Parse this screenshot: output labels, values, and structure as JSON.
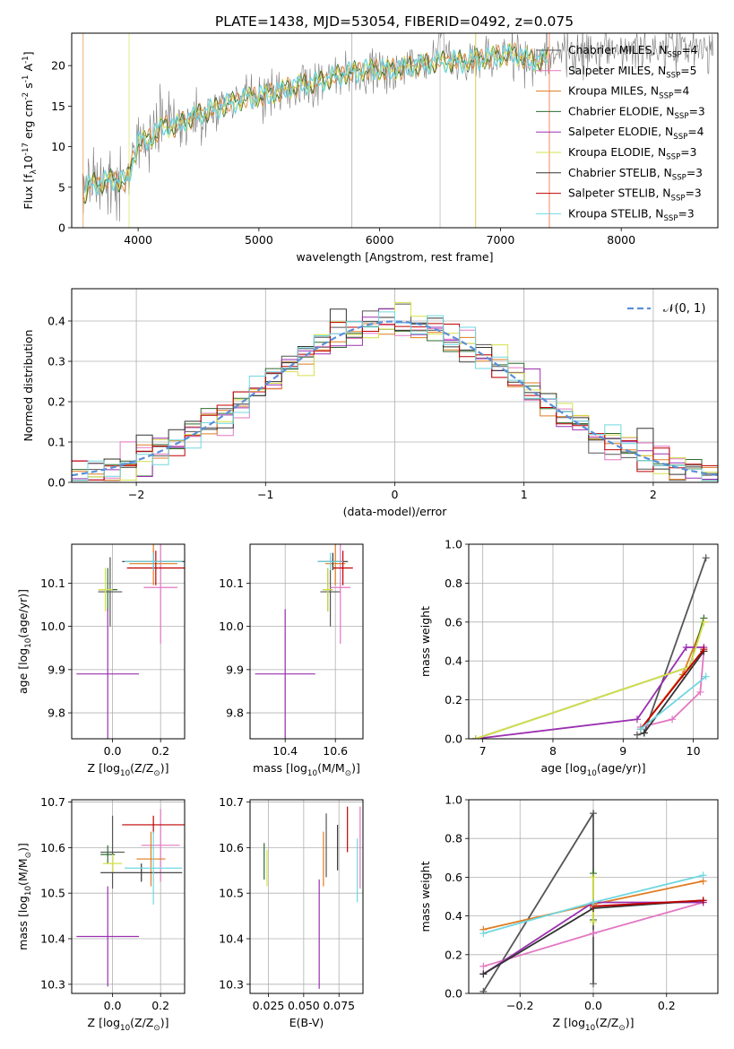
{
  "figure": {
    "title": "PLATE=1438, MJD=53054, FIBERID=0492, z=0.075"
  },
  "models": [
    {
      "label": "Chabrier MILES, N$_{SSP}$=4",
      "color": "#555555"
    },
    {
      "label": "Salpeter MILES, N$_{SSP}$=5",
      "color": "#e377c2"
    },
    {
      "label": "Kroupa MILES, N$_{SSP}$=4",
      "color": "#e07b20"
    },
    {
      "label": "Chabrier ELODIE, N$_{SSP}$=3",
      "color": "#2e6b2e"
    },
    {
      "label": "Salpeter ELODIE, N$_{SSP}$=4",
      "color": "#9b30b0"
    },
    {
      "label": "Kroupa ELODIE, N$_{SSP}$=3",
      "color": "#d6e04a"
    },
    {
      "label": "Chabrier STELIB, N$_{SSP}$=3",
      "color": "#333333"
    },
    {
      "label": "Salpeter STELIB, N$_{SSP}$=3",
      "color": "#c00000"
    },
    {
      "label": "Kroupa STELIB, N$_{SSP}$=3",
      "color": "#6fd7e0"
    }
  ],
  "chart_data": [
    {
      "id": "spectrum",
      "type": "line",
      "xlabel": "wavelength [Angstrom, rest frame]",
      "ylabel": "Flux [f$_\\lambda$10$^{-17}$ erg cm$^{-2}$ s$^{-1}$ A$^{-1}$]",
      "xlim": [
        3450,
        8800
      ],
      "ylim": [
        0,
        24
      ],
      "xticks": [
        4000,
        5000,
        6000,
        7000,
        8000
      ],
      "yticks": [
        0,
        5,
        10,
        15,
        20
      ],
      "legend": "right",
      "continuum": {
        "x": [
          3540,
          3600,
          3700,
          3800,
          3900,
          4000,
          4100,
          4200,
          4300,
          4500,
          4700,
          4900,
          5100,
          5300,
          5500,
          5700,
          5900,
          6100,
          6300,
          6500,
          6700,
          6900,
          7100,
          7300,
          7500,
          7800,
          8100,
          8400,
          8760
        ],
        "y": [
          3.5,
          5.5,
          5.5,
          6,
          5.5,
          10.5,
          11,
          12.5,
          12.5,
          14,
          15,
          16,
          16.5,
          17.5,
          18,
          19,
          19.5,
          19.5,
          20,
          20.5,
          20.5,
          21,
          21.5,
          20.5,
          21.5,
          22,
          22,
          22.5,
          22
        ]
      }
    },
    {
      "id": "residuals",
      "type": "step",
      "xlabel": "(data-model)/error",
      "ylabel": "Normed distribution",
      "xlim": [
        -2.5,
        2.5
      ],
      "ylim": [
        0,
        0.48
      ],
      "xticks": [
        -2,
        -1,
        0,
        1,
        2
      ],
      "yticks": [
        0,
        0.1,
        0.2,
        0.3,
        0.4
      ],
      "legend_label": "$\\mathcal{N}(0,1)$",
      "bin_width": 0.125
    },
    {
      "id": "age_vs_Z",
      "type": "errorbar",
      "xlabel": "Z [log$_{10}$(Z/Z$_\\odot$)]",
      "ylabel": "age  [log$_{10}$(age/yr)]",
      "xlim": [
        -0.17,
        0.3
      ],
      "ylim": [
        9.74,
        10.19
      ],
      "xticks": [
        0.0,
        0.2
      ],
      "yticks": [
        9.8,
        9.9,
        10.0,
        10.1
      ],
      "points": [
        {
          "x": -0.01,
          "y": 10.08,
          "xerr": 0.05,
          "yerr": 0.08,
          "model": 0
        },
        {
          "x": 0.2,
          "y": 10.09,
          "xerr": 0.07,
          "yerr": 0.13,
          "model": 1
        },
        {
          "x": 0.17,
          "y": 10.145,
          "xerr": 0.1,
          "yerr": 0.05,
          "model": 2
        },
        {
          "x": -0.02,
          "y": 10.085,
          "xerr": 0.04,
          "yerr": 0.05,
          "model": 3
        },
        {
          "x": -0.02,
          "y": 9.89,
          "xerr": 0.13,
          "yerr": 0.15,
          "model": 4
        },
        {
          "x": -0.03,
          "y": 10.085,
          "xerr": 0.03,
          "yerr": 0.05,
          "model": 5
        },
        {
          "x": 0.17,
          "y": 10.15,
          "xerr": 0.13,
          "yerr": 0.02,
          "model": 6
        },
        {
          "x": 0.18,
          "y": 10.135,
          "xerr": 0.12,
          "yerr": 0.04,
          "model": 7
        },
        {
          "x": 0.17,
          "y": 10.15,
          "xerr": 0.12,
          "yerr": 0.02,
          "model": 8
        }
      ]
    },
    {
      "id": "age_vs_mass",
      "type": "errorbar",
      "xlabel": "mass [log$_{10}$(M/M$_\\odot$)]",
      "ylabel": "",
      "xlim": [
        10.26,
        10.71
      ],
      "ylim": [
        9.74,
        10.19
      ],
      "xticks": [
        10.4,
        10.6
      ],
      "yticks": [
        9.8,
        9.9,
        10.0,
        10.1
      ],
      "points": [
        {
          "x": 10.58,
          "y": 10.08,
          "xerr": 0.04,
          "yerr": 0.08,
          "model": 0
        },
        {
          "x": 10.62,
          "y": 10.09,
          "xerr": 0.04,
          "yerr": 0.13,
          "model": 1
        },
        {
          "x": 10.6,
          "y": 10.145,
          "xerr": 0.04,
          "yerr": 0.05,
          "model": 2
        },
        {
          "x": 10.57,
          "y": 10.085,
          "xerr": 0.02,
          "yerr": 0.05,
          "model": 3
        },
        {
          "x": 10.4,
          "y": 9.89,
          "xerr": 0.12,
          "yerr": 0.15,
          "model": 4
        },
        {
          "x": 10.57,
          "y": 10.085,
          "xerr": 0.02,
          "yerr": 0.05,
          "model": 5
        },
        {
          "x": 10.59,
          "y": 10.15,
          "xerr": 0.06,
          "yerr": 0.02,
          "model": 6
        },
        {
          "x": 10.63,
          "y": 10.135,
          "xerr": 0.04,
          "yerr": 0.04,
          "model": 7
        },
        {
          "x": 10.58,
          "y": 10.15,
          "xerr": 0.05,
          "yerr": 0.02,
          "model": 8
        }
      ]
    },
    {
      "id": "weight_vs_age",
      "type": "line",
      "xlabel": "age  [log$_{10}$(age/yr)]",
      "ylabel": "mass weight",
      "xlim": [
        6.8,
        10.35
      ],
      "ylim": [
        0,
        1.0
      ],
      "xticks": [
        7,
        8,
        9,
        10
      ],
      "yticks": [
        0,
        0.2,
        0.4,
        0.6,
        0.8,
        1.0
      ],
      "series": [
        {
          "model": 0,
          "x": [
            9.2,
            9.3,
            10.18
          ],
          "y": [
            0.02,
            0.03,
            0.93
          ]
        },
        {
          "model": 1,
          "x": [
            9.25,
            9.7,
            10.1,
            10.15
          ],
          "y": [
            0.06,
            0.1,
            0.24,
            0.45
          ]
        },
        {
          "model": 2,
          "x": [
            9.25,
            9.85,
            10.15
          ],
          "y": [
            0.05,
            0.33,
            0.6
          ]
        },
        {
          "model": 3,
          "x": [
            6.9,
            9.95,
            10.15
          ],
          "y": [
            0.0,
            0.37,
            0.62
          ]
        },
        {
          "model": 4,
          "x": [
            6.9,
            9.2,
            9.9,
            10.15
          ],
          "y": [
            0.0,
            0.1,
            0.47,
            0.47
          ]
        },
        {
          "model": 5,
          "x": [
            6.9,
            9.95,
            10.15
          ],
          "y": [
            0.0,
            0.37,
            0.6
          ]
        },
        {
          "model": 6,
          "x": [
            9.3,
            10.15
          ],
          "y": [
            0.03,
            0.45
          ]
        },
        {
          "model": 7,
          "x": [
            9.25,
            10.15
          ],
          "y": [
            0.05,
            0.46
          ]
        },
        {
          "model": 8,
          "x": [
            9.25,
            10.18
          ],
          "y": [
            0.05,
            0.32
          ]
        }
      ]
    },
    {
      "id": "mass_vs_Z",
      "type": "errorbar",
      "xlabel": "Z [log$_{10}$(Z/Z$_\\odot$)]",
      "ylabel": "mass [log$_{10}$(M/M$_\\odot$)]",
      "xlim": [
        -0.17,
        0.3
      ],
      "ylim": [
        10.28,
        10.705
      ],
      "xticks": [
        0.0,
        0.2
      ],
      "yticks": [
        10.3,
        10.4,
        10.5,
        10.6,
        10.7
      ],
      "points": [
        {
          "x": 0.0,
          "y": 10.59,
          "xerr": 0.05,
          "yerr": 0.08,
          "model": 0
        },
        {
          "x": 0.2,
          "y": 10.605,
          "xerr": 0.08,
          "yerr": 0.08,
          "model": 1
        },
        {
          "x": 0.16,
          "y": 10.575,
          "xerr": 0.06,
          "yerr": 0.06,
          "model": 2
        },
        {
          "x": -0.02,
          "y": 10.585,
          "xerr": 0.03,
          "yerr": 0.02,
          "model": 3
        },
        {
          "x": -0.02,
          "y": 10.405,
          "xerr": 0.13,
          "yerr": 0.11,
          "model": 4
        },
        {
          "x": 0.0,
          "y": 10.565,
          "xerr": 0.04,
          "yerr": 0.02,
          "model": 5
        },
        {
          "x": 0.12,
          "y": 10.545,
          "xerr": 0.17,
          "yerr": 0.02,
          "model": 6
        },
        {
          "x": 0.17,
          "y": 10.65,
          "xerr": 0.13,
          "yerr": 0.02,
          "model": 7
        },
        {
          "x": 0.17,
          "y": 10.555,
          "xerr": 0.12,
          "yerr": 0.08,
          "model": 8
        }
      ]
    },
    {
      "id": "mass_vs_EBV",
      "type": "errorbar",
      "xlabel": "E(B-V)",
      "ylabel": "",
      "xlim": [
        0.012,
        0.092
      ],
      "ylim": [
        10.28,
        10.705
      ],
      "xticks": [
        0.025,
        0.05,
        0.075
      ],
      "yticks": [
        10.3,
        10.4,
        10.5,
        10.6,
        10.7
      ],
      "points": [
        {
          "x": 0.066,
          "y": 10.605,
          "yerr": 0.07,
          "model": 0
        },
        {
          "x": 0.09,
          "y": 10.6,
          "yerr": 0.09,
          "model": 1
        },
        {
          "x": 0.064,
          "y": 10.575,
          "yerr": 0.06,
          "model": 2
        },
        {
          "x": 0.022,
          "y": 10.57,
          "yerr": 0.04,
          "model": 3
        },
        {
          "x": 0.061,
          "y": 10.41,
          "yerr": 0.12,
          "model": 4
        },
        {
          "x": 0.024,
          "y": 10.555,
          "yerr": 0.04,
          "model": 5
        },
        {
          "x": 0.074,
          "y": 10.6,
          "yerr": 0.05,
          "model": 6
        },
        {
          "x": 0.081,
          "y": 10.64,
          "yerr": 0.05,
          "model": 7
        },
        {
          "x": 0.088,
          "y": 10.55,
          "yerr": 0.07,
          "model": 8
        }
      ]
    },
    {
      "id": "weight_vs_Z",
      "type": "line",
      "xlabel": "Z [log$_{10}$(Z/Z$_\\odot$)]",
      "ylabel": "mass weight",
      "xlim": [
        -0.34,
        0.34
      ],
      "ylim": [
        0,
        1.0
      ],
      "xticks": [
        -0.2,
        0.0,
        0.2
      ],
      "yticks": [
        0,
        0.2,
        0.4,
        0.6,
        0.8,
        1.0
      ],
      "series": [
        {
          "model": 0,
          "x": [
            -0.3,
            0.0,
            0.0
          ],
          "y": [
            0.01,
            0.93,
            0.05
          ]
        },
        {
          "model": 1,
          "x": [
            -0.3,
            0.0,
            0.3
          ],
          "y": [
            0.14,
            0.31,
            0.47
          ]
        },
        {
          "model": 2,
          "x": [
            -0.3,
            0.0,
            0.3
          ],
          "y": [
            0.33,
            0.46,
            0.58
          ]
        },
        {
          "model": 3,
          "x": [
            0.0,
            0.0
          ],
          "y": [
            0.62,
            0.38
          ]
        },
        {
          "model": 4,
          "x": [
            -0.3,
            0.0,
            0.3
          ],
          "y": [
            0.1,
            0.47,
            0.47
          ]
        },
        {
          "model": 5,
          "x": [
            0.0,
            0.0
          ],
          "y": [
            0.6,
            0.37
          ]
        },
        {
          "model": 6,
          "x": [
            -0.3,
            0.0,
            0.3
          ],
          "y": [
            0.1,
            0.44,
            0.48
          ]
        },
        {
          "model": 7,
          "x": [
            0.0,
            0.3
          ],
          "y": [
            0.45,
            0.48
          ]
        },
        {
          "model": 8,
          "x": [
            -0.3,
            0.0,
            0.3
          ],
          "y": [
            0.31,
            0.47,
            0.61
          ]
        }
      ]
    }
  ]
}
